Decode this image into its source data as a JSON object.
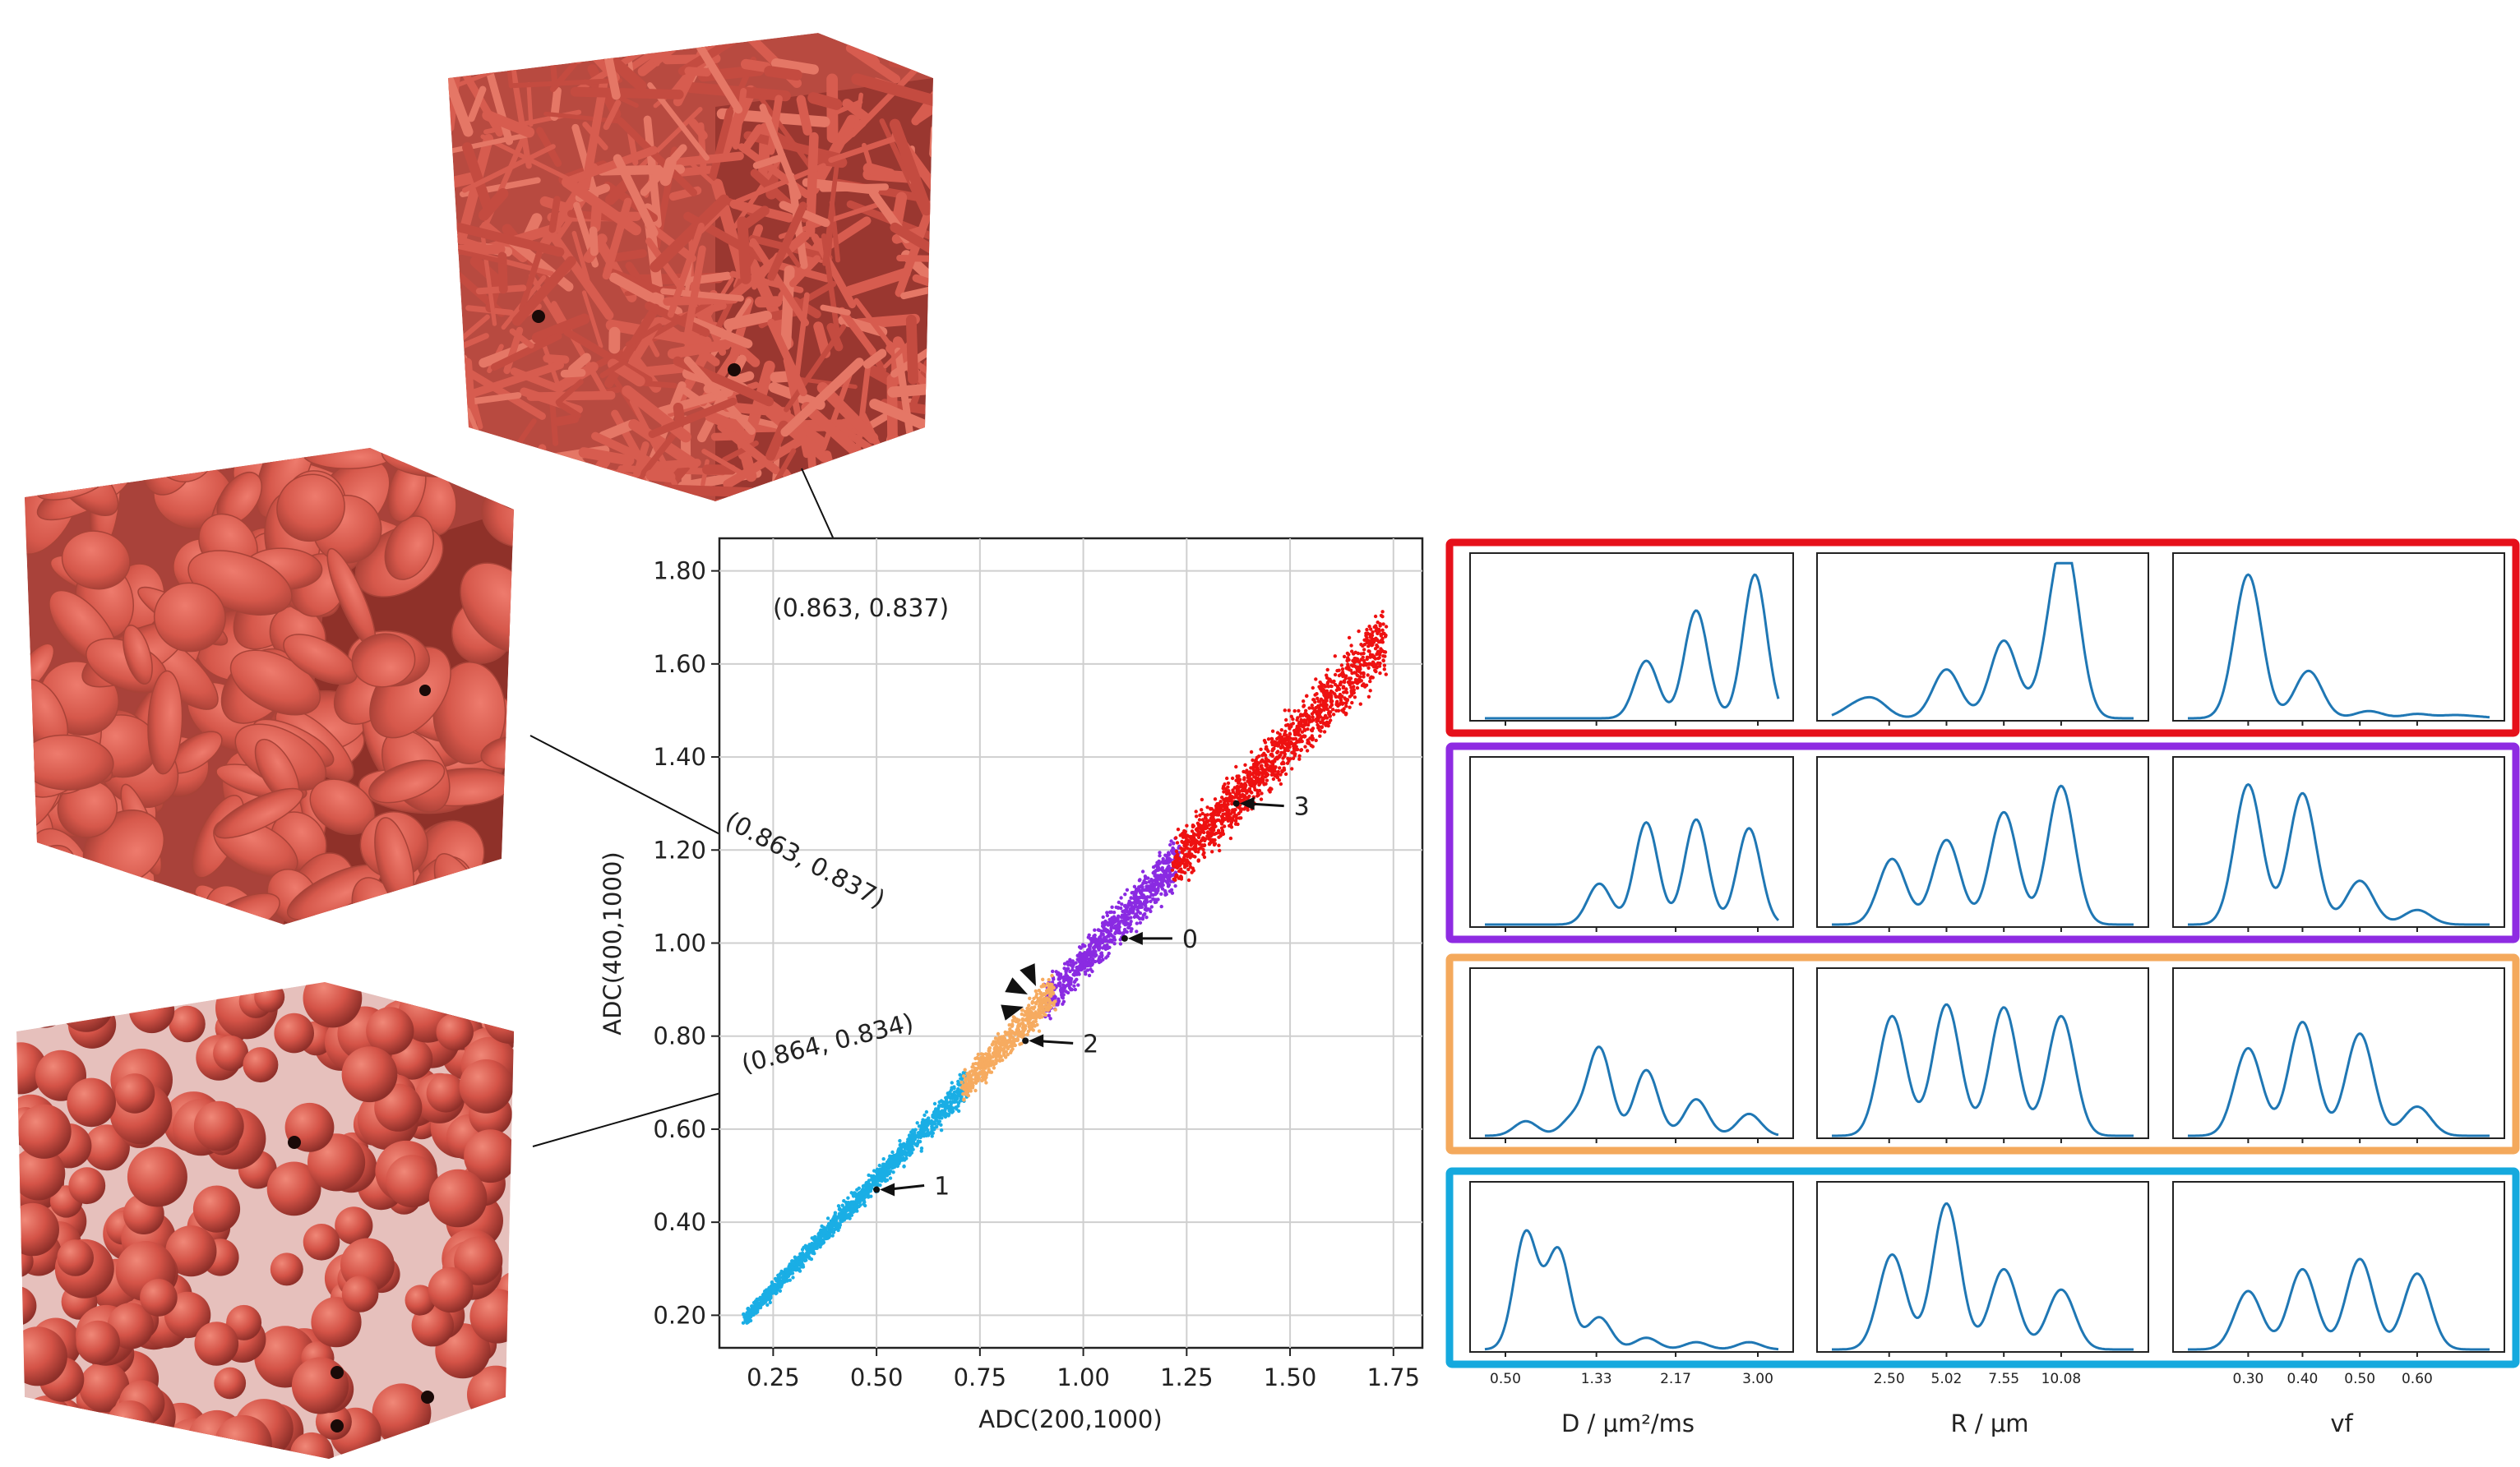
{
  "scatter": {
    "xlabel": "ADC(200,1000)",
    "ylabel": "ADC(400,1000)",
    "xlim": [
      0.12,
      1.82
    ],
    "ylim": [
      0.13,
      1.87
    ],
    "xticks": [
      0.25,
      0.5,
      0.75,
      1.0,
      1.25,
      1.5,
      1.75
    ],
    "xtick_labels": [
      "0.25",
      "0.50",
      "0.75",
      "1.00",
      "1.25",
      "1.50",
      "1.75"
    ],
    "yticks": [
      0.2,
      0.4,
      0.6,
      0.8,
      1.0,
      1.2,
      1.4,
      1.6,
      1.8
    ],
    "ytick_labels": [
      "0.20",
      "0.40",
      "0.60",
      "0.80",
      "1.00",
      "1.20",
      "1.40",
      "1.60",
      "1.80"
    ],
    "grid": true,
    "clusters": [
      {
        "label": "0",
        "color": "#8a2be2",
        "x_range": [
          0.91,
          1.23
        ],
        "centroid": [
          1.1,
          1.01
        ]
      },
      {
        "label": "1",
        "color": "#1aaee5",
        "x_range": [
          0.18,
          0.72
        ],
        "centroid": [
          0.5,
          0.47
        ]
      },
      {
        "label": "2",
        "color": "#f6ab60",
        "x_range": [
          0.71,
          0.93
        ],
        "centroid": [
          0.86,
          0.79
        ]
      },
      {
        "label": "3",
        "color": "#ee1111",
        "x_range": [
          1.22,
          1.73
        ],
        "centroid": [
          1.37,
          1.3
        ]
      }
    ],
    "callouts": [
      {
        "text": "(0.863, 0.837)",
        "point": [
          0.863,
          0.837
        ]
      },
      {
        "text": "(0.863, 0.837)",
        "point": [
          0.863,
          0.837
        ]
      },
      {
        "text": "(0.864, 0.834)",
        "point": [
          0.864,
          0.834
        ]
      }
    ]
  },
  "renderings": [
    {
      "name": "cylinder-fibers-substrate"
    },
    {
      "name": "ellipsoid-discs-substrate"
    },
    {
      "name": "spheres-substrate"
    }
  ],
  "distributions": {
    "column_labels": [
      "D / μm²/ms",
      "R / μm",
      "vf"
    ],
    "D_ticks": [
      "0.50",
      "1.33",
      "2.17",
      "3.00"
    ],
    "R_ticks": [
      "2.50",
      "5.02",
      "7.55",
      "10.08"
    ],
    "vf_ticks": [
      "0.30",
      "0.40",
      "0.50",
      "0.60"
    ],
    "line_color": "#1f77b4",
    "rows": [
      {
        "cluster": "3",
        "frame_color": "#e6101a",
        "D": [
          0,
          0,
          0.05,
          0.35,
          0.75,
          1.0
        ],
        "R": [
          0.07,
          0.12,
          0.34,
          0.54,
          0.4,
          1.0
        ],
        "vf": [
          1.0,
          0.33,
          0.05,
          0.03,
          0.02,
          0.01
        ]
      },
      {
        "cluster": "0",
        "frame_color": "#8e2be2",
        "D": [
          0,
          0,
          0.28,
          0.7,
          0.72,
          0.66
        ],
        "R": [
          0.45,
          0.58,
          0.77,
          0.95,
          0,
          0
        ],
        "vf": [
          0.96,
          0.9,
          0.3,
          0.1,
          0,
          0
        ]
      },
      {
        "cluster": "2",
        "frame_color": "#f4a95c",
        "D": [
          0.1,
          0.12,
          0.6,
          0.45,
          0.25,
          0.15
        ],
        "R": [
          0.82,
          0.9,
          0.88,
          0.82,
          0,
          0
        ],
        "vf": [
          0.6,
          0.78,
          0.7,
          0.2,
          0,
          0
        ]
      },
      {
        "cluster": "1",
        "frame_color": "#15a9de",
        "D": [
          0.8,
          0.68,
          0.22,
          0.08,
          0.05,
          0.05
        ],
        "R": [
          0.65,
          1.0,
          0.55,
          0.41,
          0,
          0
        ],
        "vf": [
          0.4,
          0.55,
          0.62,
          0.52,
          0,
          0
        ]
      }
    ]
  },
  "chart_data": {
    "type": "scatter",
    "title": "",
    "xlabel": "ADC(200,1000)",
    "ylabel": "ADC(400,1000)",
    "xlim": [
      0.12,
      1.82
    ],
    "ylim": [
      0.13,
      1.87
    ],
    "series": [
      {
        "name": "0",
        "x": [
          0.91,
          1.0,
          1.1,
          1.2,
          1.23
        ],
        "y": [
          0.86,
          0.95,
          1.01,
          1.12,
          1.15
        ]
      },
      {
        "name": "1",
        "x": [
          0.18,
          0.3,
          0.5,
          0.6,
          0.72
        ],
        "y": [
          0.19,
          0.29,
          0.47,
          0.55,
          0.66
        ]
      },
      {
        "name": "2",
        "x": [
          0.71,
          0.8,
          0.86,
          0.93
        ],
        "y": [
          0.66,
          0.73,
          0.79,
          0.86
        ]
      },
      {
        "name": "3",
        "x": [
          1.22,
          1.37,
          1.5,
          1.62,
          1.73
        ],
        "y": [
          1.15,
          1.3,
          1.42,
          1.55,
          1.65
        ]
      }
    ]
  }
}
